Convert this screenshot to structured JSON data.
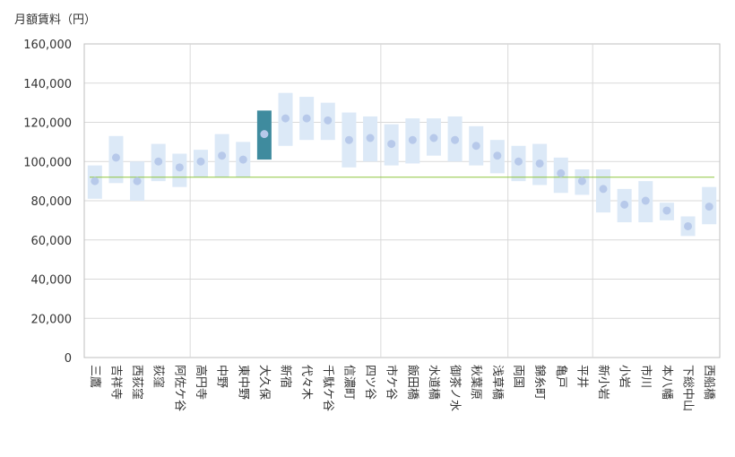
{
  "chart_data": {
    "type": "range-bar-with-dots",
    "ylabel": "月額賃料（円）",
    "ylim": [
      0,
      160000
    ],
    "yticks": [
      0,
      20000,
      40000,
      60000,
      80000,
      100000,
      120000,
      140000,
      160000
    ],
    "ytick_labels": [
      "0",
      "20,000",
      "40,000",
      "60,000",
      "80,000",
      "100,000",
      "120,000",
      "140,000",
      "160,000"
    ],
    "reference_line": 92000,
    "highlight_category": "大久保",
    "colors": {
      "range": "#dce9f7",
      "dot": "#b7c9ea",
      "highlight_range": "#3f8b9e",
      "highlight_dot": "#b7c9ea",
      "reference": "#8dc63f",
      "grid": "#d9d9d9",
      "axis": "#bfbfbf"
    },
    "categories": [
      "三鷹",
      "吉祥寺",
      "西荻窪",
      "荻窪",
      "阿佐ケ谷",
      "高円寺",
      "中野",
      "東中野",
      "大久保",
      "新宿",
      "代々木",
      "千駄ケ谷",
      "信濃町",
      "四ツ谷",
      "市ケ谷",
      "飯田橋",
      "水道橋",
      "御茶ノ水",
      "秋葉原",
      "浅草橋",
      "両国",
      "錦糸町",
      "亀戸",
      "平井",
      "新小岩",
      "小岩",
      "市川",
      "本八幡",
      "下総中山",
      "西船橋"
    ],
    "low": [
      81000,
      89000,
      80000,
      90000,
      87000,
      92000,
      92000,
      92000,
      101000,
      108000,
      111000,
      111000,
      97000,
      100000,
      98000,
      99000,
      103000,
      100000,
      98000,
      94000,
      90000,
      88000,
      84000,
      83000,
      74000,
      69000,
      69000,
      70000,
      62000,
      68000
    ],
    "high": [
      98000,
      113000,
      100000,
      109000,
      104000,
      106000,
      114000,
      110000,
      126000,
      135000,
      133000,
      130000,
      125000,
      123000,
      119000,
      122000,
      122000,
      123000,
      118000,
      111000,
      108000,
      109000,
      102000,
      96000,
      96000,
      86000,
      90000,
      79000,
      72000,
      87000
    ],
    "median": [
      90000,
      102000,
      90000,
      100000,
      97000,
      100000,
      103000,
      101000,
      114000,
      122000,
      122000,
      121000,
      111000,
      112000,
      109000,
      111000,
      112000,
      111000,
      108000,
      103000,
      100000,
      99000,
      94000,
      90000,
      86000,
      78000,
      80000,
      75000,
      67000,
      77000
    ],
    "vertical_separators_after": [
      "阿佐ケ谷",
      "四ツ谷",
      "浅草橋",
      "平井"
    ]
  }
}
